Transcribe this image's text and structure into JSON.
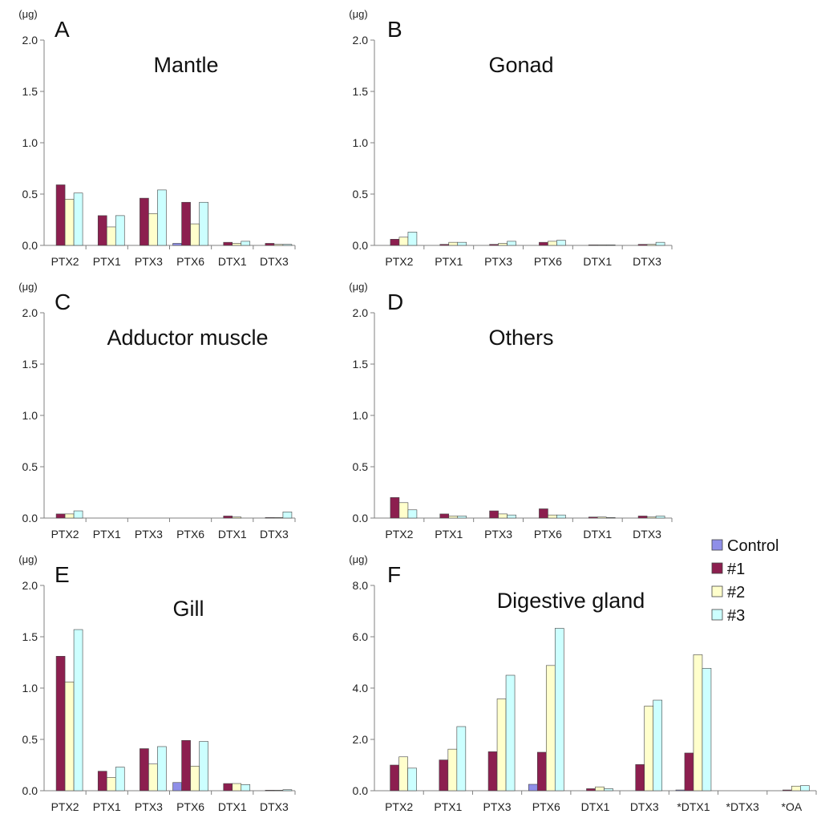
{
  "colors": {
    "Control": "#8f8fe8",
    "#1": "#8c1f4f",
    "#2": "#ffffcc",
    "#3": "#ccffff"
  },
  "legend": [
    "Control",
    "#1",
    "#2",
    "#3"
  ],
  "unit": "(μg)",
  "chart_data": [
    {
      "type": "bar",
      "letter": "A",
      "title": "Mantle",
      "ylabel": "(μg)",
      "ylim": [
        0,
        2.0
      ],
      "yticks": [
        "0.0",
        "0.5",
        "1.0",
        "1.5",
        "2.0"
      ],
      "categories": [
        "PTX2",
        "PTX1",
        "PTX3",
        "PTX6",
        "DTX1",
        "DTX3"
      ],
      "series": [
        {
          "name": "Control",
          "values": [
            0,
            0,
            0,
            0.02,
            0,
            0
          ]
        },
        {
          "name": "#1",
          "values": [
            0.59,
            0.29,
            0.46,
            0.42,
            0.03,
            0.02
          ]
        },
        {
          "name": "#2",
          "values": [
            0.45,
            0.18,
            0.31,
            0.21,
            0.02,
            0.01
          ]
        },
        {
          "name": "#3",
          "values": [
            0.51,
            0.29,
            0.54,
            0.42,
            0.04,
            0.01
          ]
        }
      ]
    },
    {
      "type": "bar",
      "letter": "B",
      "title": "Gonad",
      "ylabel": "(μg)",
      "ylim": [
        0,
        2.0
      ],
      "yticks": [
        "0.0",
        "0.5",
        "1.0",
        "1.5",
        "2.0"
      ],
      "categories": [
        "PTX2",
        "PTX1",
        "PTX3",
        "PTX6",
        "DTX1",
        "DTX3"
      ],
      "series": [
        {
          "name": "Control",
          "values": [
            0,
            0,
            0,
            0,
            0,
            0
          ]
        },
        {
          "name": "#1",
          "values": [
            0.06,
            0.01,
            0.01,
            0.03,
            0.005,
            0.01
          ]
        },
        {
          "name": "#2",
          "values": [
            0.08,
            0.03,
            0.02,
            0.04,
            0.005,
            0.01
          ]
        },
        {
          "name": "#3",
          "values": [
            0.13,
            0.03,
            0.04,
            0.05,
            0.005,
            0.03
          ]
        }
      ]
    },
    {
      "type": "bar",
      "letter": "C",
      "title": "Adductor muscle",
      "ylabel": "(μg)",
      "ylim": [
        0,
        2.0
      ],
      "yticks": [
        "0.0",
        "0.5",
        "1.0",
        "1.5",
        "2.0"
      ],
      "categories": [
        "PTX2",
        "PTX1",
        "PTX3",
        "PTX6",
        "DTX1",
        "DTX3"
      ],
      "series": [
        {
          "name": "Control",
          "values": [
            0,
            0,
            0,
            0,
            0,
            0
          ]
        },
        {
          "name": "#1",
          "values": [
            0.04,
            0,
            0,
            0,
            0.02,
            0.005
          ]
        },
        {
          "name": "#2",
          "values": [
            0.04,
            0,
            0,
            0,
            0.01,
            0.005
          ]
        },
        {
          "name": "#3",
          "values": [
            0.07,
            0,
            0,
            0,
            0,
            0.06
          ]
        }
      ]
    },
    {
      "type": "bar",
      "letter": "D",
      "title": "Others",
      "ylabel": "(μg)",
      "ylim": [
        0,
        2.0
      ],
      "yticks": [
        "0.0",
        "0.5",
        "1.0",
        "1.5",
        "2.0"
      ],
      "categories": [
        "PTX2",
        "PTX1",
        "PTX3",
        "PTX6",
        "DTX1",
        "DTX3"
      ],
      "series": [
        {
          "name": "Control",
          "values": [
            0,
            0,
            0,
            0,
            0,
            0
          ]
        },
        {
          "name": "#1",
          "values": [
            0.2,
            0.04,
            0.07,
            0.09,
            0.01,
            0.02
          ]
        },
        {
          "name": "#2",
          "values": [
            0.15,
            0.02,
            0.04,
            0.03,
            0.01,
            0.01
          ]
        },
        {
          "name": "#3",
          "values": [
            0.08,
            0.02,
            0.03,
            0.03,
            0.005,
            0.02
          ]
        }
      ]
    },
    {
      "type": "bar",
      "letter": "E",
      "title": "Gill",
      "ylabel": "(μg)",
      "ylim": [
        0,
        2.0
      ],
      "yticks": [
        "0.0",
        "0.5",
        "1.0",
        "1.5",
        "2.0"
      ],
      "categories": [
        "PTX2",
        "PTX1",
        "PTX3",
        "PTX6",
        "DTX1",
        "DTX3"
      ],
      "series": [
        {
          "name": "Control",
          "values": [
            0,
            0,
            0,
            0.08,
            0,
            0
          ]
        },
        {
          "name": "#1",
          "values": [
            1.31,
            0.19,
            0.41,
            0.49,
            0.07,
            0.005
          ]
        },
        {
          "name": "#2",
          "values": [
            1.06,
            0.13,
            0.26,
            0.24,
            0.07,
            0.005
          ]
        },
        {
          "name": "#3",
          "values": [
            1.57,
            0.23,
            0.43,
            0.48,
            0.06,
            0.01
          ]
        }
      ]
    },
    {
      "type": "bar",
      "letter": "F",
      "title": "Digestive gland",
      "ylabel": "(μg)",
      "ylim": [
        0,
        8.0
      ],
      "yticks": [
        "0.0",
        "2.0",
        "4.0",
        "6.0",
        "8.0"
      ],
      "categories": [
        "PTX2",
        "PTX1",
        "PTX3",
        "PTX6",
        "DTX1",
        "DTX3",
        "*DTX1",
        "*DTX3",
        "*OA"
      ],
      "series": [
        {
          "name": "Control",
          "values": [
            0,
            0,
            0,
            0.25,
            0,
            0,
            0.03,
            0,
            0
          ]
        },
        {
          "name": "#1",
          "values": [
            1.0,
            1.2,
            1.52,
            1.5,
            0.08,
            1.02,
            1.47,
            0,
            0.03
          ]
        },
        {
          "name": "#2",
          "values": [
            1.32,
            1.62,
            3.58,
            4.88,
            0.15,
            3.3,
            5.3,
            0,
            0.18
          ]
        },
        {
          "name": "#3",
          "values": [
            0.88,
            2.5,
            4.5,
            6.33,
            0.08,
            3.53,
            4.77,
            0,
            0.2
          ]
        }
      ]
    }
  ]
}
